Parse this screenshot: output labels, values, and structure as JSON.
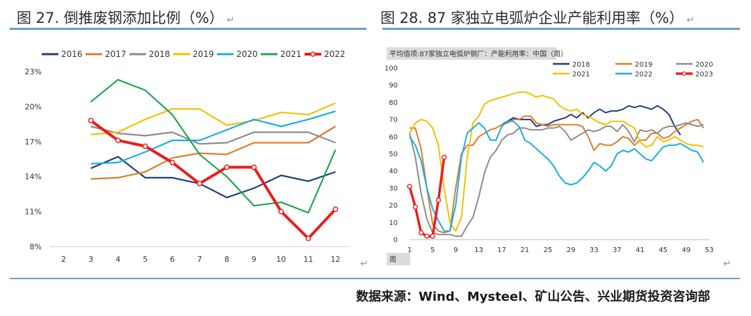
{
  "left": {
    "title": "图 27. 倒推废钢添加比例（%）",
    "return_mark": "↵",
    "chart_data": {
      "type": "line",
      "x": [
        2,
        3,
        4,
        5,
        6,
        7,
        8,
        9,
        10,
        11,
        12
      ],
      "ylim": [
        8,
        23
      ],
      "yticks": [
        8,
        11,
        14,
        17,
        20,
        23
      ],
      "tick_labels": [
        "8%",
        "11%",
        "14%",
        "17%",
        "20%",
        "23%"
      ],
      "series": [
        {
          "name": "2016",
          "color": "#1f3d7a",
          "values": [
            null,
            14.7,
            15.7,
            13.9,
            13.9,
            13.4,
            12.2,
            13.0,
            14.1,
            13.6,
            14.4
          ]
        },
        {
          "name": "2017",
          "color": "#e07b2a",
          "values": [
            null,
            13.8,
            13.9,
            14.4,
            15.6,
            16.0,
            15.9,
            16.9,
            16.9,
            16.9,
            18.3
          ]
        },
        {
          "name": "2018",
          "color": "#8c8c8c",
          "values": [
            null,
            18.3,
            17.7,
            17.5,
            17.8,
            16.8,
            16.9,
            17.8,
            17.8,
            17.8,
            16.9
          ]
        },
        {
          "name": "2019",
          "color": "#f5c000",
          "values": [
            null,
            17.6,
            17.8,
            18.9,
            19.8,
            19.8,
            18.4,
            18.8,
            19.5,
            19.3,
            20.3
          ]
        },
        {
          "name": "2020",
          "color": "#16aee6",
          "values": [
            null,
            15.1,
            15.2,
            16.1,
            17.1,
            17.1,
            18.0,
            18.9,
            18.3,
            18.9,
            19.6
          ]
        },
        {
          "name": "2021",
          "color": "#1fa84d",
          "values": [
            null,
            20.4,
            22.3,
            21.4,
            19.3,
            15.9,
            14.0,
            11.5,
            11.8,
            10.9,
            16.3
          ]
        },
        {
          "name": "2022",
          "color": "#ee1c1c",
          "values": [
            null,
            18.8,
            17.1,
            16.6,
            15.2,
            13.4,
            14.8,
            14.8,
            11.0,
            8.7,
            11.2
          ],
          "markers": true
        }
      ]
    }
  },
  "right": {
    "title": "图 28. 87 家独立电弧炉企业产能利用率（%）",
    "return_mark": "↵",
    "chart_data": {
      "type": "line",
      "subtitle": "平均值项:87家独立电弧炉钢厂：产能利用率：中国（周）",
      "xlabel": "周",
      "xlim": [
        1,
        53
      ],
      "xticks": [
        1,
        5,
        9,
        13,
        17,
        21,
        25,
        29,
        33,
        37,
        41,
        45,
        49,
        53
      ],
      "ylim": [
        0,
        100
      ],
      "yticks": [
        0,
        10,
        20,
        30,
        40,
        50,
        60,
        70,
        80,
        90,
        100
      ],
      "series": [
        {
          "name": "2018",
          "color": "#1f3d7a",
          "start": 17,
          "values": [
            67,
            69,
            71,
            70,
            70,
            70,
            66,
            67,
            67,
            69,
            70,
            71,
            73,
            71,
            74,
            71,
            74,
            76,
            74,
            75,
            75,
            76,
            78,
            77,
            78,
            77,
            76,
            78,
            76,
            73,
            66,
            61
          ]
        },
        {
          "name": "2019",
          "color": "#e07b2a",
          "start": 1,
          "values": [
            65,
            65,
            53,
            30,
            9,
            5,
            4,
            5,
            30,
            50,
            55,
            55,
            60,
            62,
            64,
            65,
            67,
            68,
            70,
            70,
            72,
            72,
            68,
            67,
            66,
            67,
            67,
            67,
            67,
            67,
            66,
            60,
            52,
            56,
            55,
            55,
            57,
            60,
            59,
            55,
            58,
            58,
            62,
            62,
            59,
            60,
            63,
            65,
            67,
            69,
            70,
            65
          ]
        },
        {
          "name": "2020",
          "color": "#8c8c8c",
          "start": 1,
          "values": [
            62,
            48,
            27,
            12,
            4,
            3,
            3,
            3,
            2,
            2,
            8,
            13,
            25,
            39,
            48,
            52,
            58,
            61,
            62,
            65,
            65,
            64,
            64,
            64,
            65,
            65,
            66,
            63,
            58,
            60,
            62,
            64,
            63,
            64,
            66,
            66,
            63,
            67,
            63,
            57,
            64,
            63,
            64,
            62,
            65,
            66,
            66,
            67,
            68,
            67,
            66,
            67
          ]
        },
        {
          "name": "2021",
          "color": "#f5c000",
          "start": 1,
          "values": [
            62,
            68,
            70,
            69,
            65,
            55,
            30,
            10,
            5,
            13,
            48,
            68,
            72,
            79,
            81,
            82,
            83,
            84,
            85,
            86,
            86,
            85,
            83,
            84,
            83,
            82,
            78,
            76,
            75,
            76,
            73,
            72,
            70,
            68,
            67,
            69,
            69,
            69,
            67,
            65,
            57,
            54,
            55,
            60,
            57,
            58,
            60,
            58,
            56,
            55,
            55,
            54
          ]
        },
        {
          "name": "2022",
          "color": "#16aee6",
          "start": 1,
          "values": [
            60,
            55,
            46,
            30,
            18,
            11,
            5,
            5,
            20,
            48,
            62,
            65,
            68,
            65,
            58,
            58,
            66,
            69,
            69,
            66,
            58,
            56,
            53,
            50,
            47,
            43,
            37,
            33,
            32,
            33,
            36,
            40,
            45,
            43,
            40,
            43,
            50,
            52,
            51,
            53,
            50,
            47,
            46,
            50,
            54,
            55,
            55,
            56,
            54,
            52,
            51,
            45
          ]
        },
        {
          "name": "2023",
          "color": "#ee1c1c",
          "start": 1,
          "values": [
            31,
            19,
            4,
            2,
            2,
            23,
            48
          ],
          "markers": true
        }
      ]
    }
  },
  "source": "数据来源：Wind、Mysteel、矿山公告、兴业期货投资咨询部"
}
